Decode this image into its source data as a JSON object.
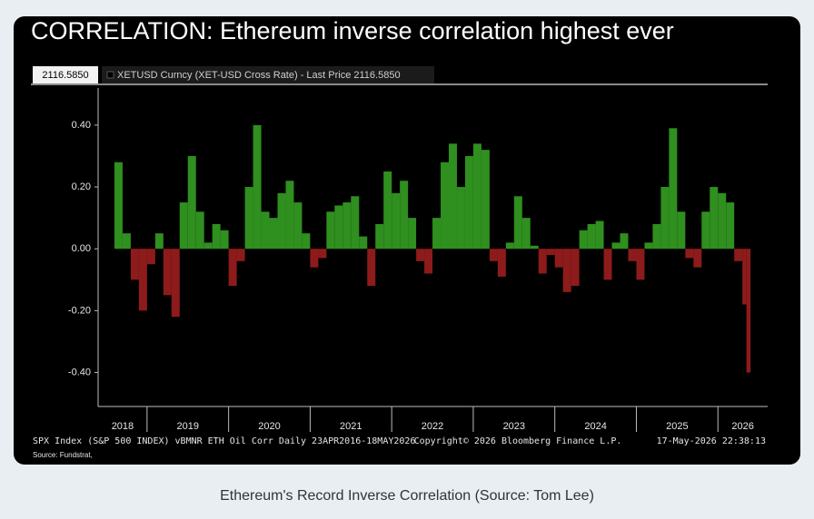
{
  "chart_data": {
    "type": "bar",
    "title": "CORRELATION: Ethereum inverse correlation highest ever",
    "last_price_label": "2116.5850",
    "legend_text": "XETUSD Curncy (XET-USD Cross Rate) - Last Price 2116.5850",
    "footer_left": "SPX Index (S&P 500 INDEX) vBMNR ETH Oil Corr Daily 23APR2016-18MAY2026",
    "footer_center": "Copyright© 2026 Bloomberg Finance L.P.",
    "footer_right": "17-May-2026 22:38:13",
    "source": "Source: Fundstrat,",
    "color_positive": "#2f8f1f",
    "color_negative": "#8e1b1b",
    "x": [
      2018.6,
      2018.7,
      2018.8,
      2018.9,
      2019.0,
      2019.1,
      2019.2,
      2019.3,
      2019.4,
      2019.5,
      2019.6,
      2019.7,
      2019.8,
      2019.9,
      2020.0,
      2020.1,
      2020.2,
      2020.3,
      2020.4,
      2020.5,
      2020.6,
      2020.7,
      2020.8,
      2020.9,
      2021.0,
      2021.1,
      2021.2,
      2021.3,
      2021.4,
      2021.5,
      2021.6,
      2021.7,
      2021.8,
      2021.9,
      2022.0,
      2022.1,
      2022.2,
      2022.3,
      2022.4,
      2022.5,
      2022.6,
      2022.7,
      2022.8,
      2022.9,
      2023.0,
      2023.1,
      2023.2,
      2023.3,
      2023.4,
      2023.5,
      2023.6,
      2023.7,
      2023.8,
      2023.9,
      2024.0,
      2024.1,
      2024.2,
      2024.3,
      2024.4,
      2024.5,
      2024.6,
      2024.7,
      2024.8,
      2024.9,
      2025.0,
      2025.1,
      2025.2,
      2025.3,
      2025.4,
      2025.5,
      2025.6,
      2025.7,
      2025.8,
      2025.9,
      2026.0,
      2026.1,
      2026.2,
      2026.3,
      2026.35
    ],
    "series": [
      {
        "values": [
          0.28,
          0.05,
          -0.1,
          -0.2,
          -0.05,
          0.05,
          -0.15,
          -0.22,
          0.15,
          0.3,
          0.12,
          0.02,
          0.08,
          0.06,
          -0.12,
          -0.04,
          0.2,
          0.4,
          0.12,
          0.1,
          0.18,
          0.22,
          0.15,
          0.05,
          -0.06,
          -0.03,
          0.12,
          0.14,
          0.15,
          0.17,
          0.04,
          -0.12,
          0.08,
          0.25,
          0.18,
          0.22,
          0.1,
          -0.04,
          -0.08,
          0.1,
          0.28,
          0.34,
          0.2,
          0.3,
          0.34,
          0.32,
          -0.04,
          -0.09,
          0.02,
          0.17,
          0.1,
          0.01,
          -0.08,
          -0.02,
          -0.06,
          -0.14,
          -0.12,
          0.06,
          0.08,
          0.09,
          -0.1,
          0.02,
          0.05,
          -0.04,
          -0.1,
          0.02,
          0.08,
          0.2,
          0.39,
          0.12,
          -0.03,
          -0.06,
          0.12,
          0.2,
          0.18,
          0.15,
          -0.04,
          -0.18,
          -0.4
        ]
      }
    ],
    "xlim": [
      2018.4,
      2026.61
    ],
    "xticks": [
      2018,
      2019,
      2020,
      2021,
      2022,
      2023,
      2024,
      2025,
      2026
    ],
    "ylim": [
      -0.51,
      0.52
    ],
    "yticks": [
      {
        "value": 0.4,
        "label": "0.40"
      },
      {
        "value": 0.2,
        "label": "0.20"
      },
      {
        "value": 0,
        "label": "0.00"
      },
      {
        "value": -0.2,
        "label": "-0.20"
      },
      {
        "value": -0.4,
        "label": "-0.40"
      }
    ]
  },
  "caption": "Ethereum's Record Inverse Correlation (Source: Tom Lee)"
}
